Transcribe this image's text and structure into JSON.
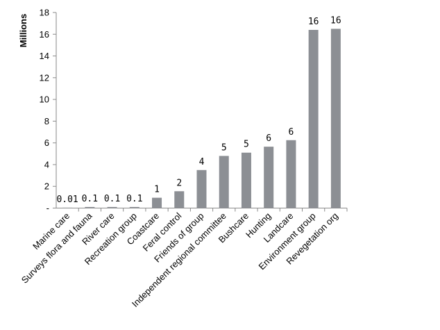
{
  "chart_data": {
    "type": "bar",
    "title": "",
    "xlabel": "",
    "ylabel": "Millions",
    "ylim": [
      0,
      18
    ],
    "yticks": [
      "-",
      "2",
      "4",
      "6",
      "8",
      "10",
      "12",
      "14",
      "16",
      "18"
    ],
    "grid": false,
    "bar_color": "#8c8f94",
    "categories": [
      "Marine care",
      "Surveys flora and fauna",
      "River care",
      "Recreation group",
      "Coastcare",
      "Feral control",
      "Friends of group",
      "Independent regional committee",
      "Bushcare",
      "Hunting",
      "Landcare",
      "Environment group",
      "Revegetation org"
    ],
    "values": [
      0.01,
      0.1,
      0.1,
      0.1,
      0.95,
      1.55,
      3.5,
      4.8,
      5.1,
      5.65,
      6.25,
      16.4,
      16.5
    ],
    "data_labels": [
      "0.01",
      "0.1",
      "0.1",
      "0.1",
      "1",
      "2",
      "4",
      "5",
      "5",
      "6",
      "6",
      "16",
      "16"
    ]
  }
}
